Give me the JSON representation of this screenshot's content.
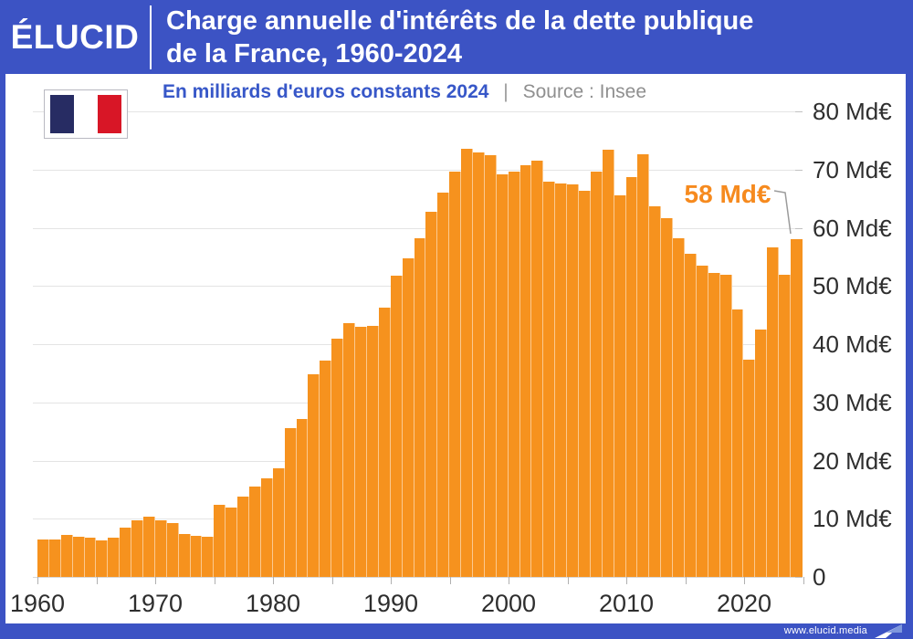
{
  "header": {
    "logo": "ÉLUCID",
    "title_line1": "Charge annuelle d'intérêts de la dette publique",
    "title_line2": "de la France, 1960-2024"
  },
  "subtitle": {
    "text": "En milliards d'euros constants 2024",
    "separator": "|",
    "source": "Source : Insee"
  },
  "annotation": {
    "label": "58 Md€"
  },
  "footer": {
    "url": "www.elucid.media"
  },
  "colors": {
    "accent_blue": "#3c53c4",
    "bar_orange": "#f6921e",
    "annotation_orange": "#f68a1e",
    "source_gray": "#8f8f8f",
    "flag_navy": "#272c63",
    "flag_white": "#ffffff",
    "flag_red": "#d81626",
    "gridline_gray": "#e4e4e4"
  },
  "chart_data": {
    "type": "bar",
    "title": "Charge annuelle d'intérêts de la dette publique de la France, 1960-2024",
    "unit": "Md€",
    "ylim": [
      0,
      80
    ],
    "ytick_step": 10,
    "grid": "horizontal",
    "legend": "none",
    "x": [
      1960,
      1961,
      1962,
      1963,
      1964,
      1965,
      1966,
      1967,
      1968,
      1969,
      1970,
      1971,
      1972,
      1973,
      1974,
      1975,
      1976,
      1977,
      1978,
      1979,
      1980,
      1981,
      1982,
      1983,
      1984,
      1985,
      1986,
      1987,
      1988,
      1989,
      1990,
      1991,
      1992,
      1993,
      1994,
      1995,
      1996,
      1997,
      1998,
      1999,
      2000,
      2001,
      2002,
      2003,
      2004,
      2005,
      2006,
      2007,
      2008,
      2009,
      2010,
      2011,
      2012,
      2013,
      2014,
      2015,
      2016,
      2017,
      2018,
      2019,
      2020,
      2021,
      2022,
      2023,
      2024
    ],
    "values": [
      6.4,
      6.4,
      7.2,
      6.9,
      6.8,
      6.2,
      6.8,
      8.4,
      9.7,
      10.4,
      9.7,
      9.2,
      7.4,
      7.0,
      6.9,
      12.4,
      12.0,
      13.8,
      15.5,
      17.0,
      18.7,
      25.6,
      27.2,
      34.8,
      37.2,
      41.0,
      43.6,
      43.0,
      43.2,
      46.2,
      51.7,
      54.8,
      58.2,
      62.7,
      66.0,
      69.7,
      73.6,
      73.0,
      72.4,
      69.2,
      69.6,
      70.8,
      71.5,
      67.9,
      67.6,
      67.4,
      66.4,
      69.7,
      73.4,
      65.6,
      68.7,
      72.7,
      63.7,
      61.6,
      58.2,
      55.6,
      53.5,
      52.2,
      51.9,
      45.9,
      37.4,
      42.5,
      56.6,
      51.9,
      58.0
    ],
    "ytick_labels": [
      "0",
      "10 Md€",
      "20 Md€",
      "30 Md€",
      "40 Md€",
      "50 Md€",
      "60 Md€",
      "70 Md€",
      "80 Md€"
    ],
    "xtick_labels": [
      "1960",
      "1970",
      "1980",
      "1990",
      "2000",
      "2010",
      "2020"
    ],
    "annotation": {
      "year": 2024,
      "label": "58 Md€"
    }
  }
}
